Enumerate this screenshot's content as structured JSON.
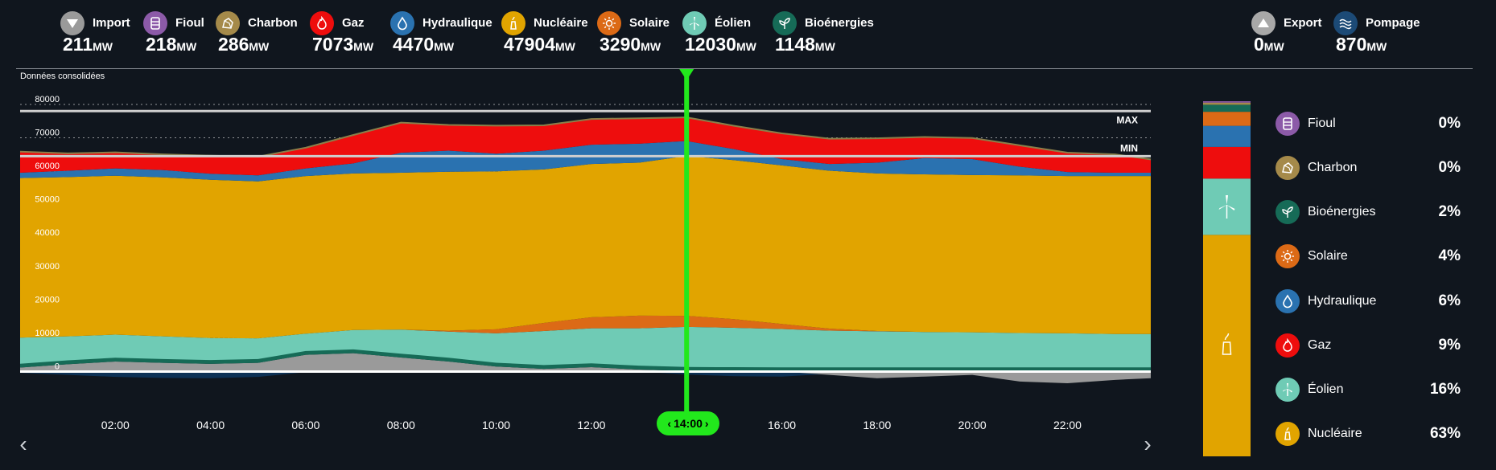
{
  "header": {
    "tiles": [
      {
        "key": "import",
        "label": "Import",
        "value": "211",
        "unit": "MW",
        "color": "#9a9a9a",
        "icon": "import-arrow-icon"
      },
      {
        "key": "fioul",
        "label": "Fioul",
        "value": "218",
        "unit": "MW",
        "color": "#8c5aa8",
        "icon": "oil-barrel-icon"
      },
      {
        "key": "charbon",
        "label": "Charbon",
        "value": "286",
        "unit": "MW",
        "color": "#a58a4a",
        "icon": "coal-icon"
      },
      {
        "key": "gaz",
        "label": "Gaz",
        "value": "7073",
        "unit": "MW",
        "color": "#ee0d0d",
        "icon": "flame-icon"
      },
      {
        "key": "hydraulique",
        "label": "Hydraulique",
        "value": "4470",
        "unit": "MW",
        "color": "#2a72b0",
        "icon": "water-drop-icon"
      },
      {
        "key": "nucleaire",
        "label": "Nucléaire",
        "value": "47904",
        "unit": "MW",
        "color": "#e1a400",
        "icon": "nuclear-plant-icon"
      },
      {
        "key": "solaire",
        "label": "Solaire",
        "value": "3290",
        "unit": "MW",
        "color": "#dc6a16",
        "icon": "sun-icon"
      },
      {
        "key": "eolien",
        "label": "Éolien",
        "value": "12030",
        "unit": "MW",
        "color": "#6fcbb5",
        "icon": "wind-turbine-icon"
      },
      {
        "key": "bioenergies",
        "label": "Bioénergies",
        "value": "1148",
        "unit": "MW",
        "color": "#166b57",
        "icon": "leaf-icon"
      }
    ],
    "right_tiles": [
      {
        "key": "export",
        "label": "Export",
        "value": "0",
        "unit": "MW",
        "color": "#a8a8a8",
        "icon": "export-arrow-icon"
      },
      {
        "key": "pompage",
        "label": "Pompage",
        "value": "870",
        "unit": "MW",
        "color": "#1c4a76",
        "icon": "pumping-waves-icon"
      }
    ]
  },
  "chart": {
    "note": "Données consolidées",
    "selected_time": "14:00",
    "max_label": "MAX",
    "min_label": "MIN"
  },
  "chart_data": {
    "type": "area",
    "x": [
      "00:00",
      "01:00",
      "02:00",
      "03:00",
      "04:00",
      "05:00",
      "06:00",
      "07:00",
      "08:00",
      "09:00",
      "10:00",
      "11:00",
      "12:00",
      "13:00",
      "14:00",
      "15:00",
      "16:00",
      "17:00",
      "18:00",
      "19:00",
      "20:00",
      "21:00",
      "22:00",
      "23:00",
      "23:45"
    ],
    "xticks": [
      "02:00",
      "04:00",
      "06:00",
      "08:00",
      "10:00",
      "12:00",
      "14:00",
      "16:00",
      "18:00",
      "20:00",
      "22:00"
    ],
    "yticks": [
      "0",
      "10000",
      "20000",
      "30000",
      "40000",
      "50000",
      "60000",
      "70000",
      "80000"
    ],
    "ylim": [
      -3500,
      80000
    ],
    "stack_order": [
      "Import",
      "Bioénergies",
      "Éolien",
      "Solaire",
      "Nucléaire",
      "Hydraulique",
      "Gaz"
    ],
    "series": [
      {
        "name": "Import",
        "color": "#9a9a9a",
        "values": [
          1200,
          2200,
          3000,
          2600,
          2300,
          2600,
          5000,
          5500,
          4200,
          3000,
          1500,
          800,
          1300,
          600,
          211,
          150,
          100,
          100,
          100,
          100,
          100,
          100,
          100,
          100,
          100
        ]
      },
      {
        "name": "Bioénergies",
        "color": "#166b57",
        "values": [
          1150,
          1150,
          1150,
          1150,
          1150,
          1150,
          1150,
          1150,
          1150,
          1150,
          1150,
          1150,
          1150,
          1150,
          1148,
          1150,
          1150,
          1150,
          1150,
          1150,
          1150,
          1150,
          1150,
          1150,
          1150
        ]
      },
      {
        "name": "Éolien",
        "color": "#6fcbb5",
        "values": [
          7800,
          7200,
          6900,
          6800,
          6600,
          6200,
          5200,
          5800,
          7200,
          7800,
          8800,
          10200,
          10500,
          11200,
          12030,
          11800,
          11500,
          11000,
          10800,
          10600,
          10500,
          10300,
          10200,
          10000,
          10000
        ]
      },
      {
        "name": "Solaire",
        "color": "#dc6a16",
        "values": [
          0,
          0,
          0,
          0,
          0,
          0,
          0,
          0,
          0,
          300,
          1200,
          2400,
          3300,
          3800,
          3290,
          2600,
          1500,
          600,
          100,
          0,
          0,
          0,
          0,
          0,
          0
        ]
      },
      {
        "name": "Nucléaire",
        "color": "#e1a400",
        "values": [
          47800,
          47700,
          47600,
          47600,
          47400,
          47000,
          47200,
          46900,
          47000,
          47600,
          47300,
          46000,
          45900,
          45800,
          47904,
          47600,
          47500,
          47300,
          47200,
          47200,
          47100,
          47200,
          47100,
          47300,
          47300
        ]
      },
      {
        "name": "Hydraulique",
        "color": "#2a72b0",
        "values": [
          1600,
          1900,
          2200,
          2200,
          1800,
          1800,
          2300,
          3000,
          6000,
          6300,
          5300,
          5600,
          5800,
          5700,
          4470,
          3300,
          1900,
          2000,
          3200,
          4900,
          4800,
          2600,
          1200,
          1000,
          1000
        ]
      },
      {
        "name": "Gaz",
        "color": "#ee0d0d",
        "values": [
          6300,
          5200,
          4800,
          4700,
          5400,
          5600,
          6200,
          8500,
          9000,
          7700,
          8400,
          7600,
          7700,
          7600,
          7073,
          7000,
          7700,
          7600,
          7300,
          6300,
          6300,
          6400,
          5800,
          5500,
          4000
        ]
      },
      {
        "name": "Export",
        "color": "#9a9a9a",
        "values": [
          0,
          0,
          0,
          0,
          0,
          0,
          0,
          0,
          0,
          0,
          0,
          0,
          0,
          0,
          0,
          0,
          0,
          -1000,
          -2000,
          -1500,
          -1000,
          -3000,
          -3500,
          -2500,
          -2000
        ]
      },
      {
        "name": "Pompage",
        "color": "#0e3256",
        "values": [
          -400,
          -1000,
          -1600,
          -1900,
          -2000,
          -1600,
          -200,
          0,
          0,
          0,
          0,
          0,
          0,
          0,
          -870,
          -1400,
          -1500,
          -700,
          -300,
          0,
          0,
          0,
          0,
          0,
          0
        ]
      }
    ],
    "reference_lines": [
      {
        "name": "MAX",
        "value": 78000
      },
      {
        "name": "MIN",
        "value": 64500
      }
    ]
  },
  "legend": {
    "items": [
      {
        "label": "Fioul",
        "percent": "0%",
        "color": "#8c5aa8",
        "icon": "oil-barrel-icon"
      },
      {
        "label": "Charbon",
        "percent": "0%",
        "color": "#a58a4a",
        "icon": "coal-icon"
      },
      {
        "label": "Bioénergies",
        "percent": "2%",
        "color": "#166b57",
        "icon": "leaf-icon"
      },
      {
        "label": "Solaire",
        "percent": "4%",
        "color": "#dc6a16",
        "icon": "sun-icon"
      },
      {
        "label": "Hydraulique",
        "percent": "6%",
        "color": "#2a72b0",
        "icon": "water-drop-icon"
      },
      {
        "label": "Gaz",
        "percent": "9%",
        "color": "#ee0d0d",
        "icon": "flame-icon"
      },
      {
        "label": "Éolien",
        "percent": "16%",
        "color": "#6fcbb5",
        "icon": "wind-turbine-icon"
      },
      {
        "label": "Nucléaire",
        "percent": "63%",
        "color": "#e1a400",
        "icon": "nuclear-plant-icon"
      }
    ]
  }
}
